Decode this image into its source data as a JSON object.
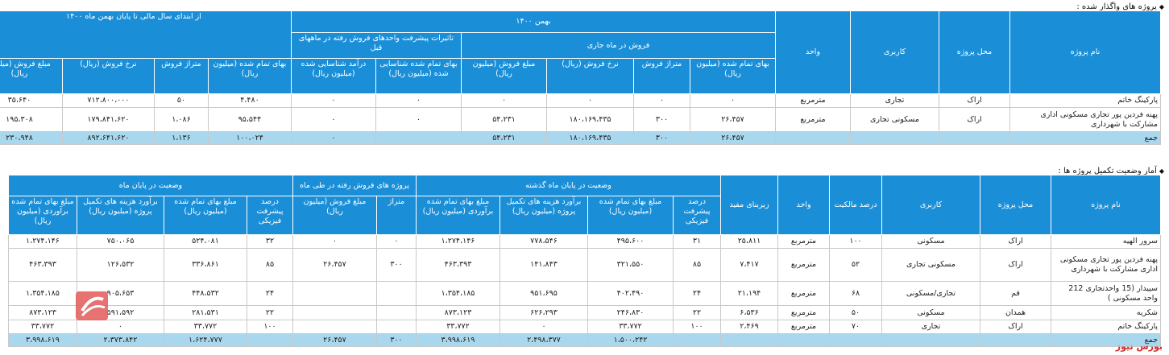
{
  "t1": {
    "title": "پروژه های واگذار شده :",
    "h": {
      "name": "نام پروژه",
      "location": "محل پروژه",
      "usage": "کاربری",
      "unit": "واحد",
      "month": "بهمن ۱۴۰۰",
      "month_sales": "فروش در ماه جاری",
      "prev_effect": "تاثیرات پیشرفت واحدهای فروش رفته در ماههای قبل",
      "ytd": "از ابتدای سال مالی تا پایان بهمن ماه ۱۴۰۰",
      "cost": "بهای تمام شده (میلیون ریال)",
      "area": "متراژ فروش",
      "rate": "نرخ فروش (ریال)",
      "amount": "مبلغ فروش (میلیون ریال)",
      "cost_recognized": "بهای تمام شده شناسایی شده (میلیون ریال)",
      "revenue_recognized": "درآمد شناسایی شده (میلیون ریال)"
    },
    "rows": [
      {
        "name": "پارکینگ خاتم",
        "location": "اراک",
        "usage": "تجاری",
        "unit": "مترمربع",
        "c1": "۰",
        "c2": "۰",
        "c3": "۰",
        "c4": "۰",
        "c5": "۰",
        "c6": "۰",
        "c7": "۴،۴۸۰",
        "c8": "۵۰",
        "c9": "۷۱۲،۸۰۰،۰۰۰",
        "c10": "۳۵،۶۴۰"
      },
      {
        "name": "پهنه فردین پور تجاری مسکونی اداری مشارکت با شهرداری",
        "location": "اراک",
        "usage": "مسکونی تجاری",
        "unit": "مترمربع",
        "c1": "۲۶،۴۵۷",
        "c2": "۳۰۰",
        "c3": "۱۸۰،۱۶۹،۴۳۵",
        "c4": "۵۴،۲۳۱",
        "c5": "۰",
        "c6": "۰",
        "c7": "۹۵،۵۴۴",
        "c8": "۱،۰۸۶",
        "c9": "۱۷۹،۸۴۱،۶۲۰",
        "c10": "۱۹۵،۳۰۸"
      }
    ],
    "total": {
      "label": "جمع",
      "c1": "۲۶،۴۵۷",
      "c2": "۳۰۰",
      "c3": "۱۸۰،۱۶۹،۴۳۵",
      "c4": "۵۴،۲۳۱",
      "c5": "",
      "c6": "۰",
      "c7": "۱۰۰،۰۲۴",
      "c8": "۱،۱۳۶",
      "c9": "۸۹۲،۶۴۱،۶۲۰",
      "c10": "۲۳۰،۹۴۸"
    }
  },
  "t2": {
    "title": "آمار وضعیت تکمیل پروژه ها :",
    "h": {
      "name": "نام پروژه",
      "location": "محل پروژه",
      "usage": "کاربری",
      "ownership": "درصد مالکیت",
      "unit": "واحد",
      "area": "زیربنای مفید",
      "prev_status": "وضعیت در پایان ماه گذشته",
      "month_sold": "پروژه های فروش رفته در طی ماه",
      "end_status": "وضعیت در پایان ماه",
      "progress": "درصد پیشرفت فیزیکی",
      "cost": "مبلغ بهای تمام شده (میلیون ریال)",
      "est_cost": "برآورد هزینه های تکمیل پروژه (میلیون ریال)",
      "est_total": "مبلغ بهای تمام شده برآوردی (میلیون ریال)",
      "sold_area": "متراژ",
      "sold_amount": "مبلغ فروش (میلیون ریال)"
    },
    "rows": [
      {
        "name": "سرور الهیه",
        "location": "اراک",
        "usage": "مسکونی",
        "own": "۱۰۰",
        "unit": "مترمربع",
        "area": "۲۵،۸۱۱",
        "p1": "۳۱",
        "p2": "۴۹۵،۶۰۰",
        "p3": "۷۷۸،۵۴۶",
        "p4": "۱،۲۷۴،۱۴۶",
        "s1": "۰",
        "s2": "۰",
        "e1": "۳۲",
        "e2": "۵۲۴،۰۸۱",
        "e3": "۷۵۰،۰۶۵",
        "e4": "۱،۲۷۴،۱۴۶"
      },
      {
        "name": "پهنه فردین پور تجاری مسکونی اداری مشارکت با شهرداری",
        "location": "اراک",
        "usage": "مسکونی تجاری",
        "own": "۵۲",
        "unit": "مترمربع",
        "area": "۷،۴۱۷",
        "p1": "۸۵",
        "p2": "۳۲۱،۵۵۰",
        "p3": "۱۴۱،۸۴۳",
        "p4": "۴۶۳،۳۹۳",
        "s1": "۳۰۰",
        "s2": "۲۶،۴۵۷",
        "e1": "۸۵",
        "e2": "۳۳۶،۸۶۱",
        "e3": "۱۲۶،۵۳۲",
        "e4": "۴۶۳،۳۹۳"
      },
      {
        "name": "سپیدار (15 واحدتجاری 212 واحد مسکونی )",
        "location": "قم",
        "usage": "تجاری/مسکونی",
        "own": "۶۸",
        "unit": "مترمربع",
        "area": "۲۱،۱۹۴",
        "p1": "۲۴",
        "p2": "۴۰۲،۴۹۰",
        "p3": "۹۵۱،۶۹۵",
        "p4": "۱،۳۵۴،۱۸۵",
        "s1": "",
        "s2": "",
        "e1": "۲۴",
        "e2": "۴۴۸،۵۳۲",
        "e3": "۹۰۵،۶۵۳",
        "e4": "۱،۳۵۴،۱۸۵"
      },
      {
        "name": "شکریه",
        "location": "همدان",
        "usage": "مسکونی",
        "own": "۵۰",
        "unit": "مترمربع",
        "area": "۶،۵۳۶",
        "p1": "۲۲",
        "p2": "۲۴۶،۸۳۰",
        "p3": "۶۲۶،۲۹۳",
        "p4": "۸۷۳،۱۲۳",
        "s1": "",
        "s2": "",
        "e1": "۲۲",
        "e2": "۲۸۱،۵۳۱",
        "e3": "۵۹۱،۵۹۲",
        "e4": "۸۷۳،۱۲۳"
      },
      {
        "name": "پارکینگ خاتم",
        "location": "اراک",
        "usage": "تجاری",
        "own": "۷۰",
        "unit": "مترمربع",
        "area": "۲،۴۶۹",
        "p1": "۱۰۰",
        "p2": "۳۳،۷۷۲",
        "p3": "۰",
        "p4": "۳۳،۷۷۲",
        "s1": "",
        "s2": "",
        "e1": "۱۰۰",
        "e2": "۳۳،۷۷۲",
        "e3": "۰",
        "e4": "۳۳،۷۷۲"
      }
    ],
    "total": {
      "label": "جمع",
      "p2": "۱،۵۰۰،۲۴۲",
      "p3": "۲،۴۹۸،۳۷۷",
      "p4": "۳،۹۹۸،۶۱۹",
      "s1": "۳۰۰",
      "s2": "۲۶،۴۵۷",
      "e2": "۱،۶۲۴،۷۷۷",
      "e3": "۲،۳۷۳،۸۴۲",
      "e4": "۳،۹۹۸،۶۱۹"
    }
  },
  "brand": "بورس نیوز"
}
